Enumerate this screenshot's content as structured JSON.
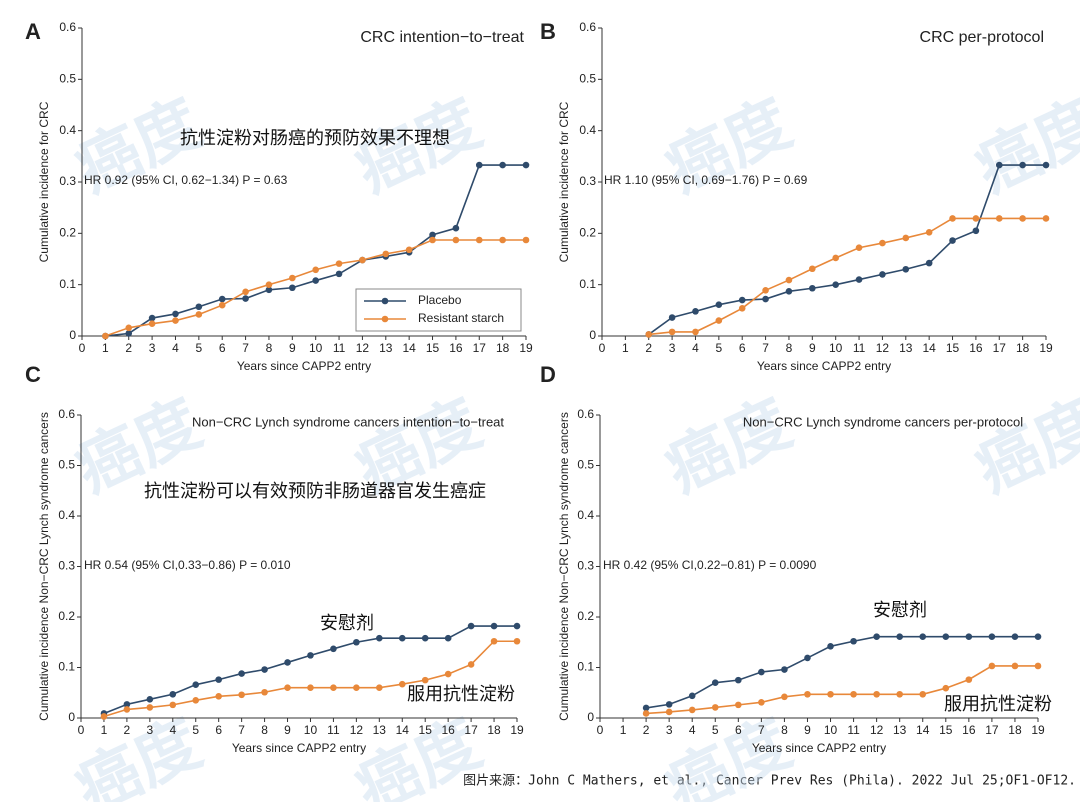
{
  "chart_data": [
    {
      "type": "line",
      "panel": "A",
      "title": "CRC intention−to−treat",
      "annotation": "HR 0.92 (95% CI, 0.62−1.34) P = 0.63",
      "xlabel": "Years since CAPP2 entry",
      "ylabel": "Cumulative incidence for CRC",
      "xlim": [
        0,
        19
      ],
      "ylim": [
        0,
        0.6
      ],
      "xticks": [
        0,
        1,
        2,
        3,
        4,
        5,
        6,
        7,
        8,
        9,
        10,
        11,
        12,
        13,
        14,
        15,
        16,
        17,
        18,
        19
      ],
      "yticks": [
        0,
        0.1,
        0.2,
        0.3,
        0.4,
        0.5,
        0.6
      ],
      "legend": "lower right",
      "notes": [
        "抗性淀粉对肠癌的预防效果不理想"
      ],
      "series": [
        {
          "name": "Placebo",
          "color": "#2f4b6b",
          "x": [
            1,
            2,
            3,
            4,
            5,
            6,
            7,
            8,
            9,
            10,
            11,
            12,
            13,
            14,
            15,
            16,
            17,
            18,
            19
          ],
          "values": [
            0,
            0.005,
            0.035,
            0.043,
            0.057,
            0.072,
            0.073,
            0.09,
            0.094,
            0.108,
            0.121,
            0.148,
            0.155,
            0.163,
            0.197,
            0.21,
            0.333,
            0.333,
            0.333
          ]
        },
        {
          "name": "Resistant starch",
          "color": "#e8883a",
          "x": [
            1,
            2,
            3,
            4,
            5,
            6,
            7,
            8,
            9,
            10,
            11,
            12,
            13,
            14,
            15,
            16,
            17,
            18,
            19
          ],
          "values": [
            0,
            0.016,
            0.024,
            0.03,
            0.042,
            0.06,
            0.086,
            0.1,
            0.113,
            0.129,
            0.141,
            0.148,
            0.16,
            0.168,
            0.187,
            0.187,
            0.187,
            0.187,
            0.187
          ]
        }
      ]
    },
    {
      "type": "line",
      "panel": "B",
      "title": "CRC per-protocol",
      "annotation": "HR 1.10 (95% CI, 0.69−1.76) P = 0.69",
      "xlabel": "Years since CAPP2 entry",
      "ylabel": "Cumulative incidence for CRC",
      "xlim": [
        0,
        19
      ],
      "ylim": [
        0,
        0.6
      ],
      "xticks": [
        0,
        1,
        2,
        3,
        4,
        5,
        6,
        7,
        8,
        9,
        10,
        11,
        12,
        13,
        14,
        15,
        16,
        17,
        18,
        19
      ],
      "yticks": [
        0,
        0.1,
        0.2,
        0.3,
        0.4,
        0.5,
        0.6
      ],
      "series": [
        {
          "color": "#2f4b6b",
          "x": [
            2,
            3,
            4,
            5,
            6,
            7,
            8,
            9,
            10,
            11,
            12,
            13,
            14,
            15,
            16,
            17,
            18,
            19
          ],
          "values": [
            0.003,
            0.036,
            0.048,
            0.061,
            0.07,
            0.072,
            0.087,
            0.093,
            0.1,
            0.11,
            0.12,
            0.13,
            0.142,
            0.186,
            0.205,
            0.333,
            0.333,
            0.333
          ]
        },
        {
          "color": "#e8883a",
          "x": [
            2,
            3,
            4,
            5,
            6,
            7,
            8,
            9,
            10,
            11,
            12,
            13,
            14,
            15,
            16,
            17,
            18,
            19
          ],
          "values": [
            0.003,
            0.008,
            0.008,
            0.03,
            0.054,
            0.089,
            0.109,
            0.131,
            0.152,
            0.172,
            0.181,
            0.191,
            0.202,
            0.229,
            0.229,
            0.229,
            0.229,
            0.229
          ]
        }
      ]
    },
    {
      "type": "line",
      "panel": "C",
      "title": "Non−CRC Lynch syndrome cancers intention−to−treat",
      "annotation": "HR 0.54 (95% CI,0.33−0.86) P = 0.010",
      "xlabel": "Years since CAPP2 entry",
      "ylabel": "Cumulative incidence Non−CRC Lynch syndrome cancers",
      "xlim": [
        0,
        19
      ],
      "ylim": [
        0,
        0.6
      ],
      "xticks": [
        0,
        1,
        2,
        3,
        4,
        5,
        6,
        7,
        8,
        9,
        10,
        11,
        12,
        13,
        14,
        15,
        16,
        17,
        18,
        19
      ],
      "yticks": [
        0,
        0.1,
        0.2,
        0.3,
        0.4,
        0.5,
        0.6
      ],
      "notes": [
        "抗性淀粉可以有效预防非肠道器官发生癌症",
        "安慰剂",
        "服用抗性淀粉"
      ],
      "series": [
        {
          "color": "#2f4b6b",
          "x": [
            1,
            2,
            3,
            4,
            5,
            6,
            7,
            8,
            9,
            10,
            11,
            12,
            13,
            14,
            15,
            16,
            17,
            18,
            19
          ],
          "values": [
            0.009,
            0.027,
            0.037,
            0.047,
            0.066,
            0.076,
            0.088,
            0.096,
            0.11,
            0.124,
            0.137,
            0.15,
            0.158,
            0.158,
            0.158,
            0.158,
            0.182,
            0.182,
            0.182
          ]
        },
        {
          "color": "#e8883a",
          "x": [
            1,
            2,
            3,
            4,
            5,
            6,
            7,
            8,
            9,
            10,
            11,
            12,
            13,
            14,
            15,
            16,
            17,
            18,
            19
          ],
          "values": [
            0.003,
            0.017,
            0.021,
            0.026,
            0.035,
            0.043,
            0.046,
            0.051,
            0.06,
            0.06,
            0.06,
            0.06,
            0.06,
            0.067,
            0.075,
            0.087,
            0.106,
            0.152,
            0.152
          ]
        }
      ]
    },
    {
      "type": "line",
      "panel": "D",
      "title": "Non−CRC Lynch syndrome cancers per-protocol",
      "annotation": "HR 0.42 (95% CI,0.22−0.81) P = 0.0090",
      "xlabel": "Years since CAPP2 entry",
      "ylabel": "Cumulative incidence Non−CRC Lynch syndrome cancers",
      "xlim": [
        0,
        19
      ],
      "ylim": [
        0,
        0.6
      ],
      "xticks": [
        0,
        1,
        2,
        3,
        4,
        5,
        6,
        7,
        8,
        9,
        10,
        11,
        12,
        13,
        14,
        15,
        16,
        17,
        18,
        19
      ],
      "yticks": [
        0,
        0.1,
        0.2,
        0.3,
        0.4,
        0.5,
        0.6
      ],
      "notes": [
        "安慰剂",
        "服用抗性淀粉"
      ],
      "series": [
        {
          "color": "#2f4b6b",
          "x": [
            2,
            3,
            4,
            5,
            6,
            7,
            8,
            9,
            10,
            11,
            12,
            13,
            14,
            15,
            16,
            17,
            18,
            19
          ],
          "values": [
            0.02,
            0.027,
            0.044,
            0.07,
            0.075,
            0.091,
            0.096,
            0.119,
            0.142,
            0.152,
            0.161,
            0.161,
            0.161,
            0.161,
            0.161,
            0.161,
            0.161,
            0.161
          ]
        },
        {
          "color": "#e8883a",
          "x": [
            2,
            3,
            4,
            5,
            6,
            7,
            8,
            9,
            10,
            11,
            12,
            13,
            14,
            15,
            16,
            17,
            18,
            19
          ],
          "values": [
            0.009,
            0.012,
            0.016,
            0.021,
            0.026,
            0.031,
            0.042,
            0.047,
            0.047,
            0.047,
            0.047,
            0.047,
            0.047,
            0.059,
            0.076,
            0.103,
            0.103,
            0.103
          ]
        }
      ]
    }
  ],
  "watermark": "癌度",
  "source": "图片来源：John C Mathers, et al., Cancer Prev Res (Phila). 2022 Jul 25;OF1-OF12."
}
